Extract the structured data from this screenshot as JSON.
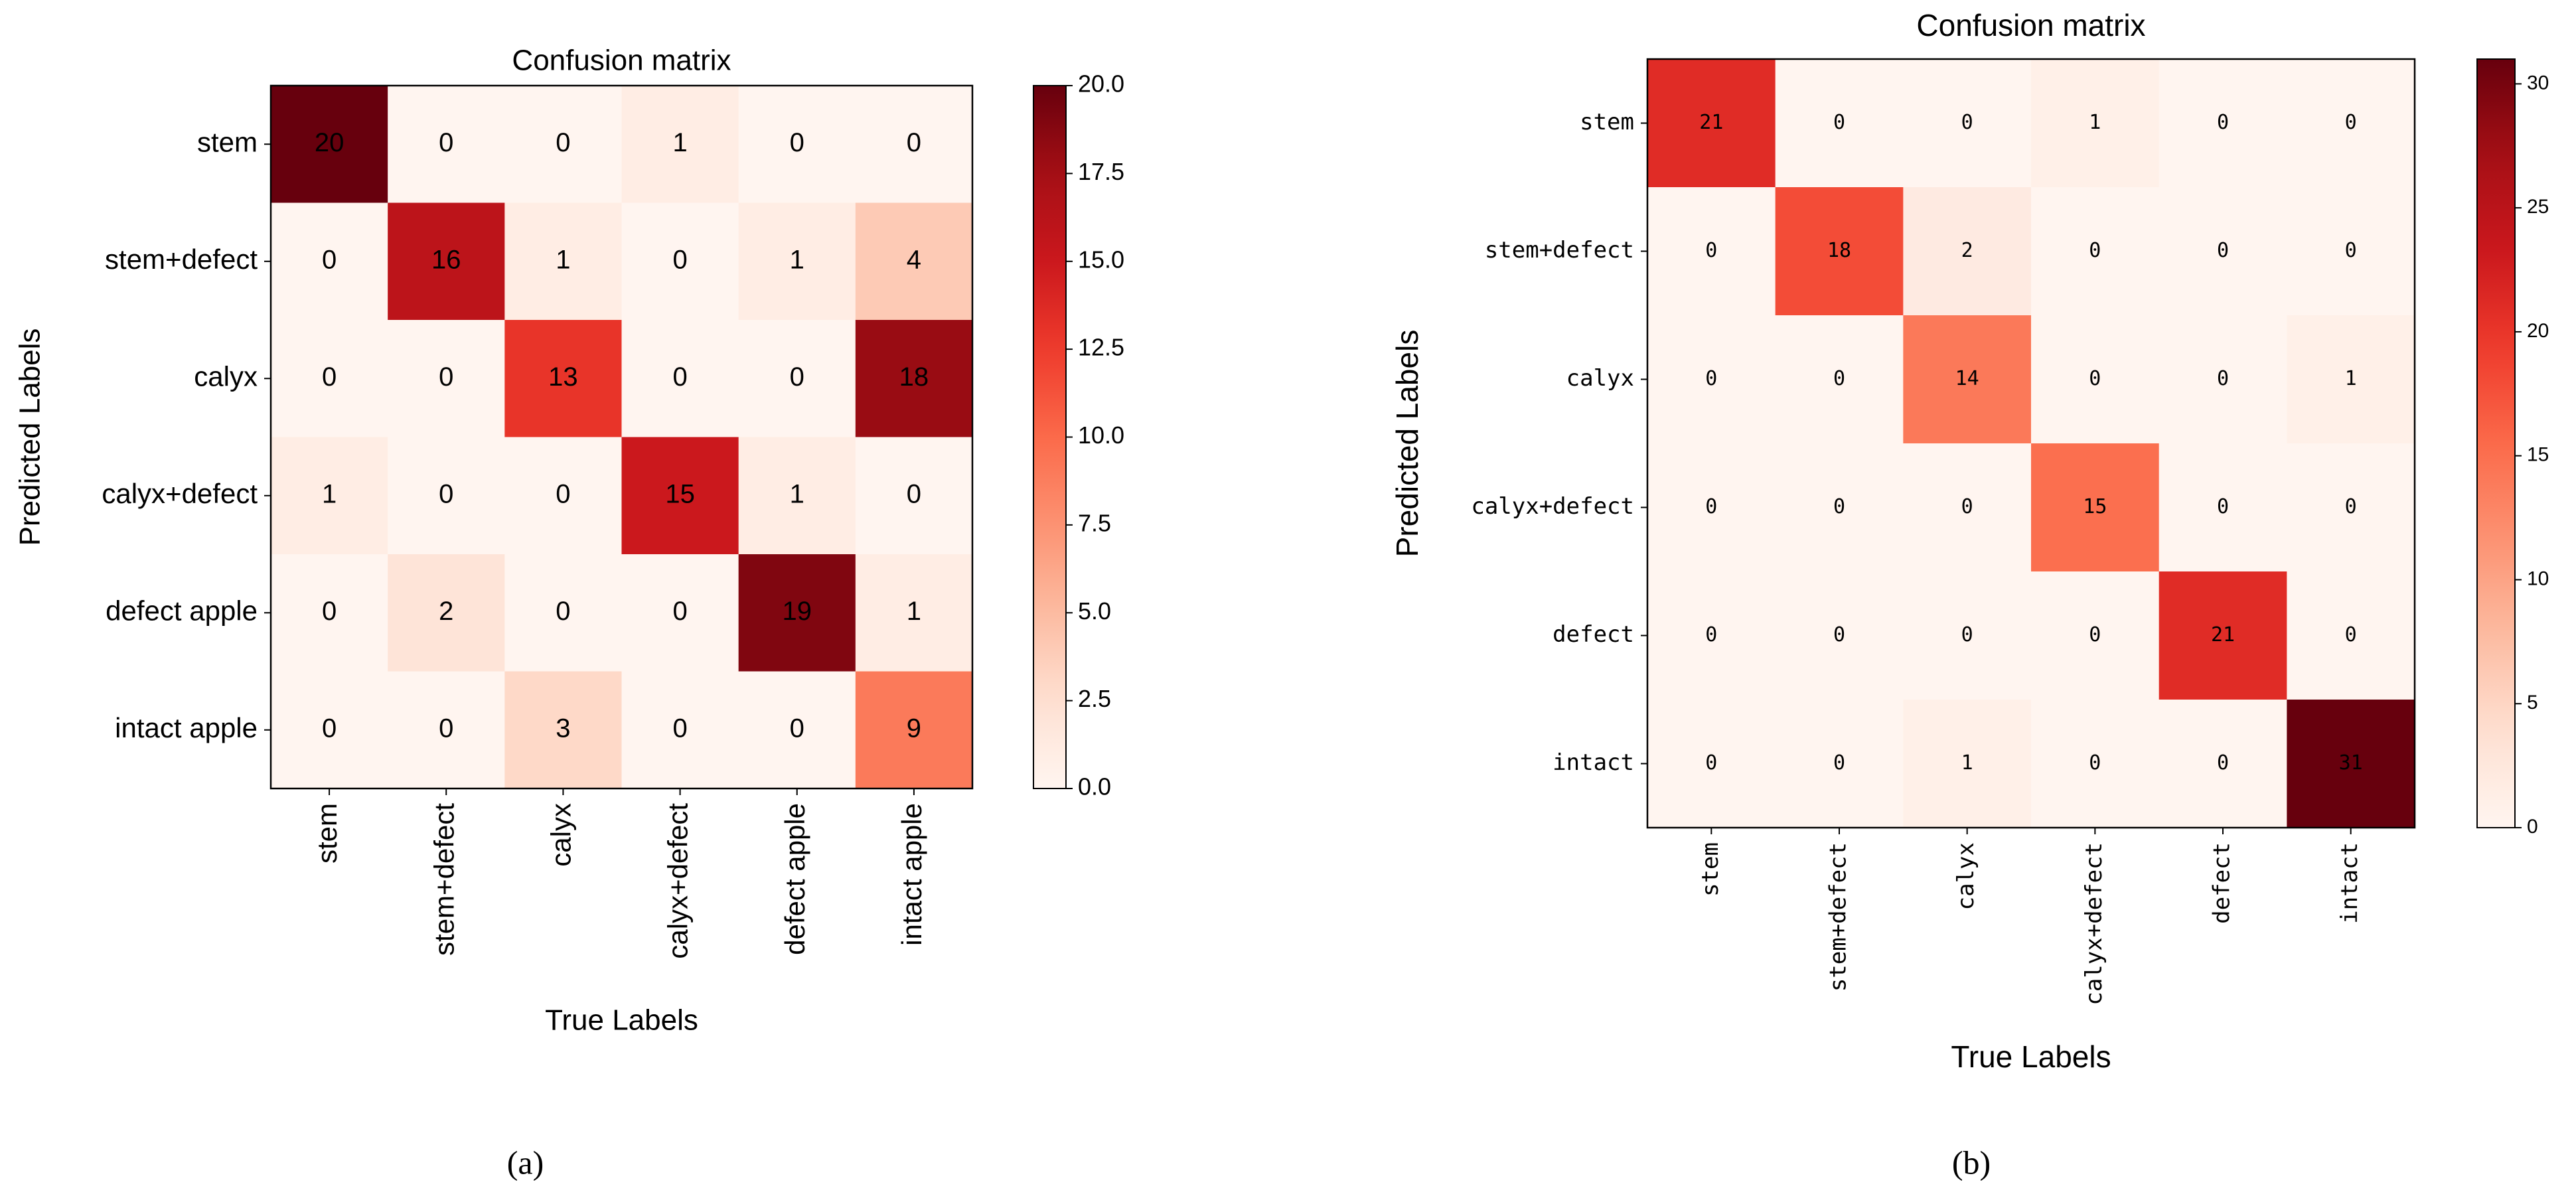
{
  "chart_data": [
    {
      "type": "heatmap",
      "title": "Confusion matrix",
      "xlabel": "True Labels",
      "ylabel": "Predicted Labels",
      "caption": "(a)",
      "x_categories": [
        "stem",
        "stem+defect",
        "calyx",
        "calyx+defect",
        "defect apple",
        "intact apple"
      ],
      "y_categories": [
        "stem",
        "stem+defect",
        "calyx",
        "calyx+defect",
        "defect apple",
        "intact apple"
      ],
      "z": [
        [
          20,
          0,
          0,
          1,
          0,
          0
        ],
        [
          0,
          16,
          1,
          0,
          1,
          4
        ],
        [
          0,
          0,
          13,
          0,
          0,
          18
        ],
        [
          1,
          0,
          0,
          15,
          1,
          0
        ],
        [
          0,
          2,
          0,
          0,
          19,
          1
        ],
        [
          0,
          0,
          3,
          0,
          0,
          9
        ]
      ],
      "colormap": "Reds",
      "zlim": [
        0,
        20
      ],
      "zticks": [
        {
          "value": 0,
          "label": "0.0"
        },
        {
          "value": 2.5,
          "label": "2.5"
        },
        {
          "value": 5,
          "label": "5.0"
        },
        {
          "value": 7.5,
          "label": "7.5"
        },
        {
          "value": 10,
          "label": "10.0"
        },
        {
          "value": 12.5,
          "label": "12.5"
        },
        {
          "value": 15,
          "label": "15.0"
        },
        {
          "value": 17.5,
          "label": "17.5"
        },
        {
          "value": 20,
          "label": "20.0"
        }
      ]
    },
    {
      "type": "heatmap",
      "title": "Confusion matrix",
      "xlabel": "True Labels",
      "ylabel": "Predicted Labels",
      "caption": "(b)",
      "x_categories": [
        "stem",
        "stem+defect",
        "calyx",
        "calyx+defect",
        "defect",
        "intact"
      ],
      "y_categories": [
        "stem",
        "stem+defect",
        "calyx",
        "calyx+defect",
        "defect",
        "intact"
      ],
      "z": [
        [
          21,
          0,
          0,
          1,
          0,
          0
        ],
        [
          0,
          18,
          2,
          0,
          0,
          0
        ],
        [
          0,
          0,
          14,
          0,
          0,
          1
        ],
        [
          0,
          0,
          0,
          15,
          0,
          0
        ],
        [
          0,
          0,
          0,
          0,
          21,
          0
        ],
        [
          0,
          0,
          1,
          0,
          0,
          31
        ]
      ],
      "colormap": "Reds",
      "zlim": [
        0,
        31
      ],
      "zticks": [
        0,
        5,
        10,
        15,
        20,
        25,
        30
      ]
    }
  ]
}
